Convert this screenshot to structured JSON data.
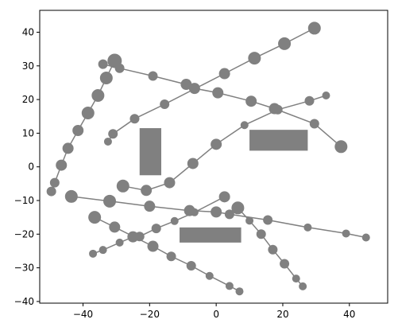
{
  "chart_data": {
    "type": "scatter",
    "title": "",
    "xlabel": "",
    "ylabel": "",
    "xlim": [
      -53,
      51.5
    ],
    "ylim": [
      -40.5,
      46.5
    ],
    "xticks": [
      -40,
      -20,
      0,
      20,
      40
    ],
    "yticks": [
      -40,
      -30,
      -20,
      -10,
      0,
      10,
      20,
      30,
      40
    ],
    "grid": false,
    "color": "#808080",
    "series": [
      {
        "points": [
          {
            "x": -49.5,
            "y": -7.3,
            "s": 6
          },
          {
            "x": -48.5,
            "y": -4.7,
            "s": 6
          },
          {
            "x": -46.5,
            "y": 0.5,
            "s": 7
          },
          {
            "x": -44.5,
            "y": 5.5,
            "s": 7
          },
          {
            "x": -41.5,
            "y": 10.8,
            "s": 7
          },
          {
            "x": -38.5,
            "y": 16,
            "s": 8
          },
          {
            "x": -35.5,
            "y": 21.2,
            "s": 8
          },
          {
            "x": -33,
            "y": 26.4,
            "s": 8
          },
          {
            "x": -30.5,
            "y": 31.5,
            "s": 9
          }
        ]
      },
      {
        "points": [
          {
            "x": -34,
            "y": 30.5,
            "s": 6
          },
          {
            "x": -29,
            "y": 29.3,
            "s": 6
          },
          {
            "x": -19,
            "y": 27,
            "s": 6
          },
          {
            "x": -9,
            "y": 24.5,
            "s": 7
          },
          {
            "x": -6.5,
            "y": 23.3,
            "s": 7
          },
          {
            "x": 0.5,
            "y": 22,
            "s": 7
          },
          {
            "x": 10.5,
            "y": 19.5,
            "s": 7
          },
          {
            "x": 17.5,
            "y": 17.3,
            "s": 7
          },
          {
            "x": 29.5,
            "y": 12.8,
            "s": 6
          },
          {
            "x": 37.5,
            "y": 6,
            "s": 8
          }
        ]
      },
      {
        "points": [
          {
            "x": -32.5,
            "y": 7.5,
            "s": 5
          },
          {
            "x": -31,
            "y": 9.8,
            "s": 6
          },
          {
            "x": -24.5,
            "y": 14.3,
            "s": 6
          },
          {
            "x": -15.5,
            "y": 18.6,
            "s": 6
          },
          {
            "x": 2.5,
            "y": 27.7,
            "s": 7
          },
          {
            "x": 11.5,
            "y": 32.3,
            "s": 8
          },
          {
            "x": 20.5,
            "y": 36.6,
            "s": 8
          },
          {
            "x": 29.5,
            "y": 41.2,
            "s": 8
          }
        ]
      },
      {
        "points": [
          {
            "x": -28,
            "y": -5.7,
            "s": 8
          },
          {
            "x": -21,
            "y": -7,
            "s": 7
          },
          {
            "x": -14,
            "y": -4.7,
            "s": 7
          },
          {
            "x": -7,
            "y": 1,
            "s": 7
          },
          {
            "x": 0,
            "y": 6.7,
            "s": 7
          },
          {
            "x": 8.5,
            "y": 12.4,
            "s": 5
          },
          {
            "x": 18.5,
            "y": 17,
            "s": 6
          },
          {
            "x": 28,
            "y": 19.6,
            "s": 6
          },
          {
            "x": 33,
            "y": 21.2,
            "s": 5
          }
        ]
      },
      {
        "points": [
          {
            "x": -43.5,
            "y": -8.8,
            "s": 8
          },
          {
            "x": -32,
            "y": -10.2,
            "s": 8
          },
          {
            "x": -20,
            "y": -11.7,
            "s": 7
          },
          {
            "x": -8,
            "y": -13,
            "s": 7
          },
          {
            "x": 0,
            "y": -13.4,
            "s": 7
          },
          {
            "x": 4,
            "y": -14.1,
            "s": 6
          },
          {
            "x": 15.5,
            "y": -15.8,
            "s": 6
          },
          {
            "x": 27.5,
            "y": -18,
            "s": 5
          },
          {
            "x": 39,
            "y": -19.8,
            "s": 5
          },
          {
            "x": 45,
            "y": -21,
            "s": 5
          }
        ]
      },
      {
        "points": [
          {
            "x": -36.5,
            "y": -15,
            "s": 8
          },
          {
            "x": -30.5,
            "y": -17.9,
            "s": 7
          },
          {
            "x": -19,
            "y": -23.6,
            "s": 7
          },
          {
            "x": -13.5,
            "y": -26.6,
            "s": 6
          },
          {
            "x": -7.5,
            "y": -29.4,
            "s": 6
          },
          {
            "x": -2,
            "y": -32.4,
            "s": 5
          },
          {
            "x": 4,
            "y": -35.4,
            "s": 5
          },
          {
            "x": 7,
            "y": -37,
            "s": 5
          }
        ]
      },
      {
        "points": [
          {
            "x": -37,
            "y": -25.8,
            "s": 5
          },
          {
            "x": -34,
            "y": -24.7,
            "s": 5
          },
          {
            "x": -29,
            "y": -22.5,
            "s": 5
          },
          {
            "x": -25,
            "y": -20.8,
            "s": 7
          },
          {
            "x": -23,
            "y": -20.7,
            "s": 6
          },
          {
            "x": -18,
            "y": -18.3,
            "s": 6
          },
          {
            "x": -12.5,
            "y": -16.1,
            "s": 5
          },
          {
            "x": -6.5,
            "y": -13.5,
            "s": 5
          },
          {
            "x": 2.5,
            "y": -8.9,
            "s": 7
          }
        ]
      },
      {
        "points": [
          {
            "x": 6.5,
            "y": -12.2,
            "s": 8
          },
          {
            "x": 10,
            "y": -16,
            "s": 5
          },
          {
            "x": 13.5,
            "y": -20,
            "s": 6
          },
          {
            "x": 17,
            "y": -24.6,
            "s": 6
          },
          {
            "x": 20.5,
            "y": -28.8,
            "s": 6
          },
          {
            "x": 24,
            "y": -33.2,
            "s": 5
          },
          {
            "x": 26,
            "y": -35.5,
            "s": 5
          }
        ]
      }
    ],
    "rectangles": [
      {
        "x0": -23,
        "x1": -16.5,
        "y0": -2.5,
        "y1": 11.5
      },
      {
        "x0": 10,
        "x1": 27.5,
        "y0": 4.8,
        "y1": 11
      },
      {
        "x0": -11,
        "x1": 7.5,
        "y0": -22.5,
        "y1": -18
      }
    ]
  }
}
